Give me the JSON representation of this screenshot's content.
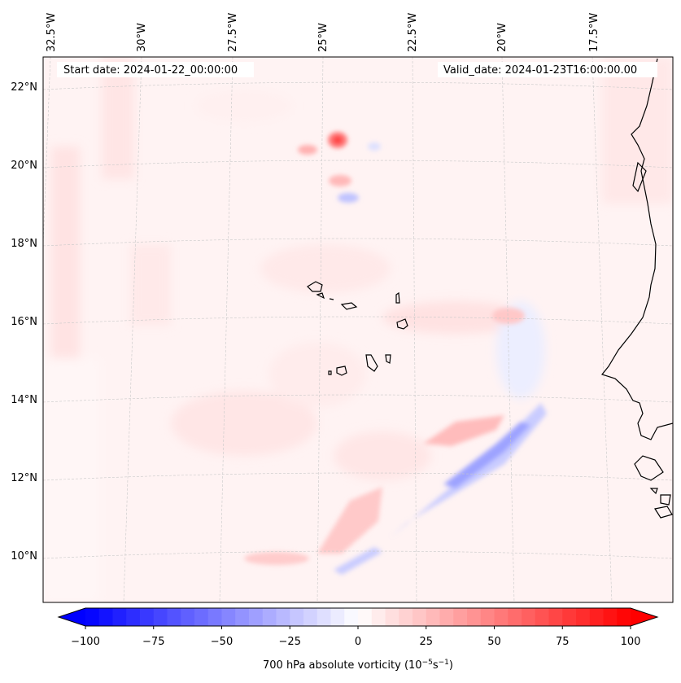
{
  "map": {
    "start_date": "Start date: 2024-01-22_00:00:00",
    "valid_date": "Valid_date: 2024-01-23T16:00:00.00",
    "lon_labels": [
      "32.5°W",
      "30°W",
      "27.5°W",
      "25°W",
      "22.5°W",
      "20°W",
      "17.5°W"
    ],
    "lat_labels": [
      "22°N",
      "20°N",
      "18°N",
      "16°N",
      "14°N",
      "12°N",
      "10°N"
    ],
    "field": "700 hPa absolute vorticity",
    "colormap": "bwr",
    "gridlines": true
  },
  "colorbar": {
    "ticks": [
      "−100",
      "−75",
      "−50",
      "−25",
      "0",
      "25",
      "50",
      "75",
      "100"
    ],
    "label_main": "700 hPa absolute vorticity (10",
    "label_exp1": "−5",
    "label_mid": "s",
    "label_exp2": "−1",
    "label_end": ")",
    "min": -100,
    "max": 100,
    "extend": "both",
    "min_color": "#0000ff",
    "zero_color": "#ffffff",
    "max_color": "#ff0000"
  }
}
